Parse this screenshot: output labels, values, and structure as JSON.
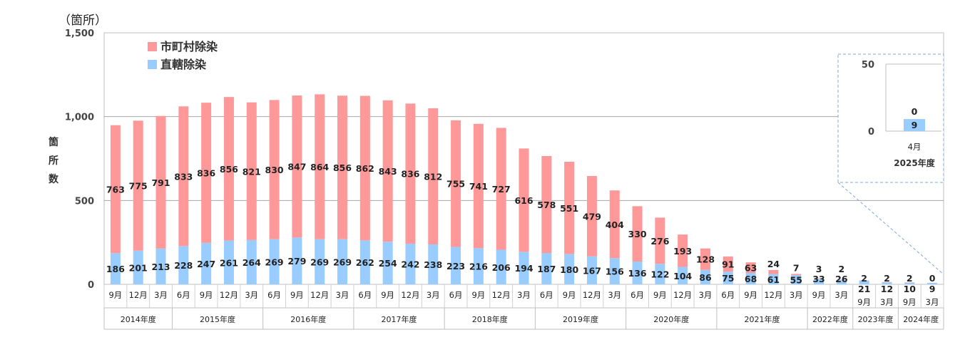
{
  "chart_data": {
    "type": "bar",
    "stacked": true,
    "unit_label": "（箇所）",
    "ylabel": "箇所数",
    "ylim": [
      0,
      1500
    ],
    "yticks": [
      "0",
      "500",
      "1,000",
      "1,500"
    ],
    "ytick_values": [
      0,
      500,
      1000,
      1500
    ],
    "legend": {
      "placement": "top-left"
    },
    "colors": {
      "municipal": "#ff9999",
      "direct": "#99ccff"
    },
    "series": [
      {
        "name": "市町村除染",
        "key": "municipal",
        "values": [
          763,
          775,
          791,
          833,
          836,
          856,
          821,
          830,
          847,
          864,
          856,
          862,
          843,
          836,
          812,
          755,
          741,
          727,
          616,
          578,
          551,
          479,
          404,
          330,
          276,
          193,
          128,
          91,
          63,
          24,
          7,
          3,
          2,
          2,
          2,
          2,
          0
        ]
      },
      {
        "name": "直轄除染",
        "key": "direct",
        "values": [
          186,
          201,
          213,
          228,
          247,
          261,
          264,
          269,
          279,
          269,
          269,
          262,
          254,
          242,
          238,
          223,
          216,
          206,
          194,
          187,
          180,
          167,
          156,
          136,
          122,
          104,
          86,
          75,
          68,
          61,
          55,
          33,
          26,
          21,
          12,
          10,
          9
        ]
      }
    ],
    "categories": [
      "9月",
      "12月",
      "3月",
      "6月",
      "9月",
      "12月",
      "3月",
      "6月",
      "9月",
      "12月",
      "3月",
      "6月",
      "9月",
      "12月",
      "3月",
      "6月",
      "9月",
      "12月",
      "3月",
      "6月",
      "9月",
      "12月",
      "3月",
      "6月",
      "9月",
      "12月",
      "3月",
      "6月",
      "9月",
      "12月",
      "3月",
      "9月",
      "3月",
      "9月",
      "3月",
      "9月",
      "3月"
    ],
    "fiscal_years": [
      {
        "label": "2014年度",
        "count": 3
      },
      {
        "label": "2015年度",
        "count": 4
      },
      {
        "label": "2016年度",
        "count": 4
      },
      {
        "label": "2017年度",
        "count": 4
      },
      {
        "label": "2018年度",
        "count": 4
      },
      {
        "label": "2019年度",
        "count": 4
      },
      {
        "label": "2020年度",
        "count": 4
      },
      {
        "label": "2021年度",
        "count": 4
      },
      {
        "label": "2022年度",
        "count": 2
      },
      {
        "label": "2023年度",
        "count": 2
      },
      {
        "label": "2024年度",
        "count": 2
      }
    ],
    "inset": {
      "ylim": [
        0,
        50
      ],
      "yticks": [
        "0",
        "50"
      ],
      "ytick_values": [
        0,
        50
      ],
      "category": "4月",
      "fiscal_year": "2025年度",
      "municipal": 0,
      "direct": 9
    }
  }
}
